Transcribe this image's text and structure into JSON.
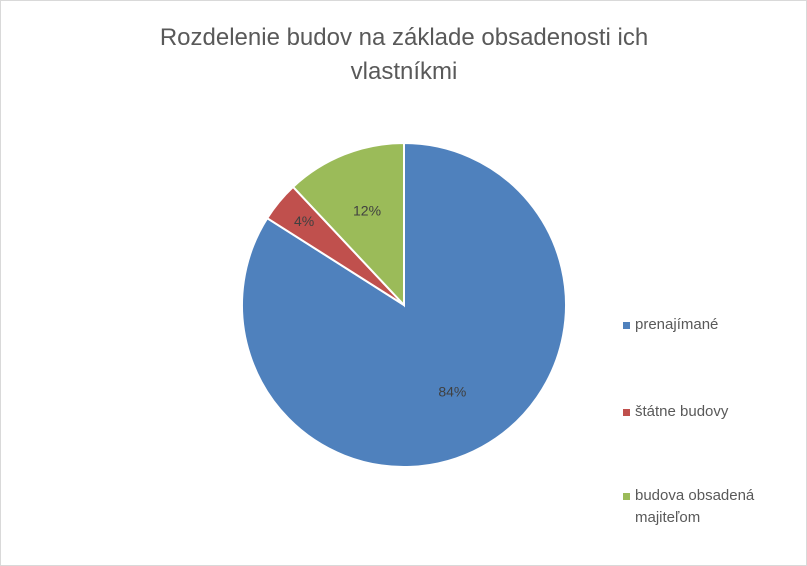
{
  "chart_data": {
    "type": "pie",
    "title": "Rozdelenie budov na základe obsadenosti ich vlastníkmi",
    "categories": [
      "prenajímané",
      "štátne budovy",
      "budova obsadená majiteľom"
    ],
    "values": [
      84,
      4,
      12
    ],
    "value_labels": [
      "84%",
      "4%",
      "12%"
    ],
    "colors": [
      "#4f81bd",
      "#c0504d",
      "#9bbb59"
    ]
  }
}
